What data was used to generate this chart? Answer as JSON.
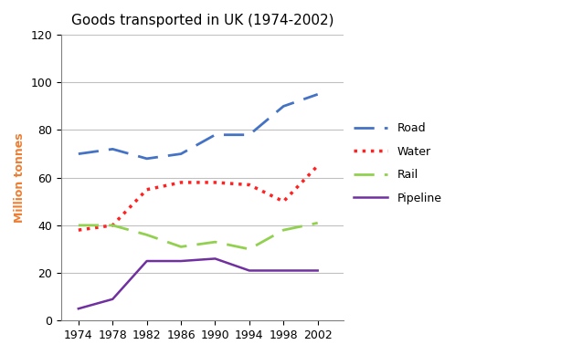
{
  "title": "Goods transported in UK (1974-2002)",
  "ylabel": "Million tonnes",
  "years": [
    1974,
    1978,
    1982,
    1986,
    1990,
    1994,
    1998,
    2002
  ],
  "road": [
    70,
    72,
    68,
    70,
    78,
    78,
    90,
    95
  ],
  "water": [
    38,
    40,
    55,
    58,
    58,
    57,
    50,
    65
  ],
  "rail": [
    40,
    40,
    36,
    31,
    33,
    30,
    38,
    41
  ],
  "pipeline": [
    5,
    9,
    25,
    25,
    26,
    21,
    21,
    21
  ],
  "road_color": "#4472C4",
  "water_color": "#FF2222",
  "rail_color": "#92D050",
  "pipeline_color": "#7030A0",
  "ylim": [
    0,
    120
  ],
  "yticks": [
    0,
    20,
    40,
    60,
    80,
    100,
    120
  ],
  "title_fontsize": 11,
  "label_fontsize": 9,
  "tick_fontsize": 9,
  "ylabel_color": "#ED7D31",
  "xlim_left": 1972,
  "xlim_right": 2005
}
